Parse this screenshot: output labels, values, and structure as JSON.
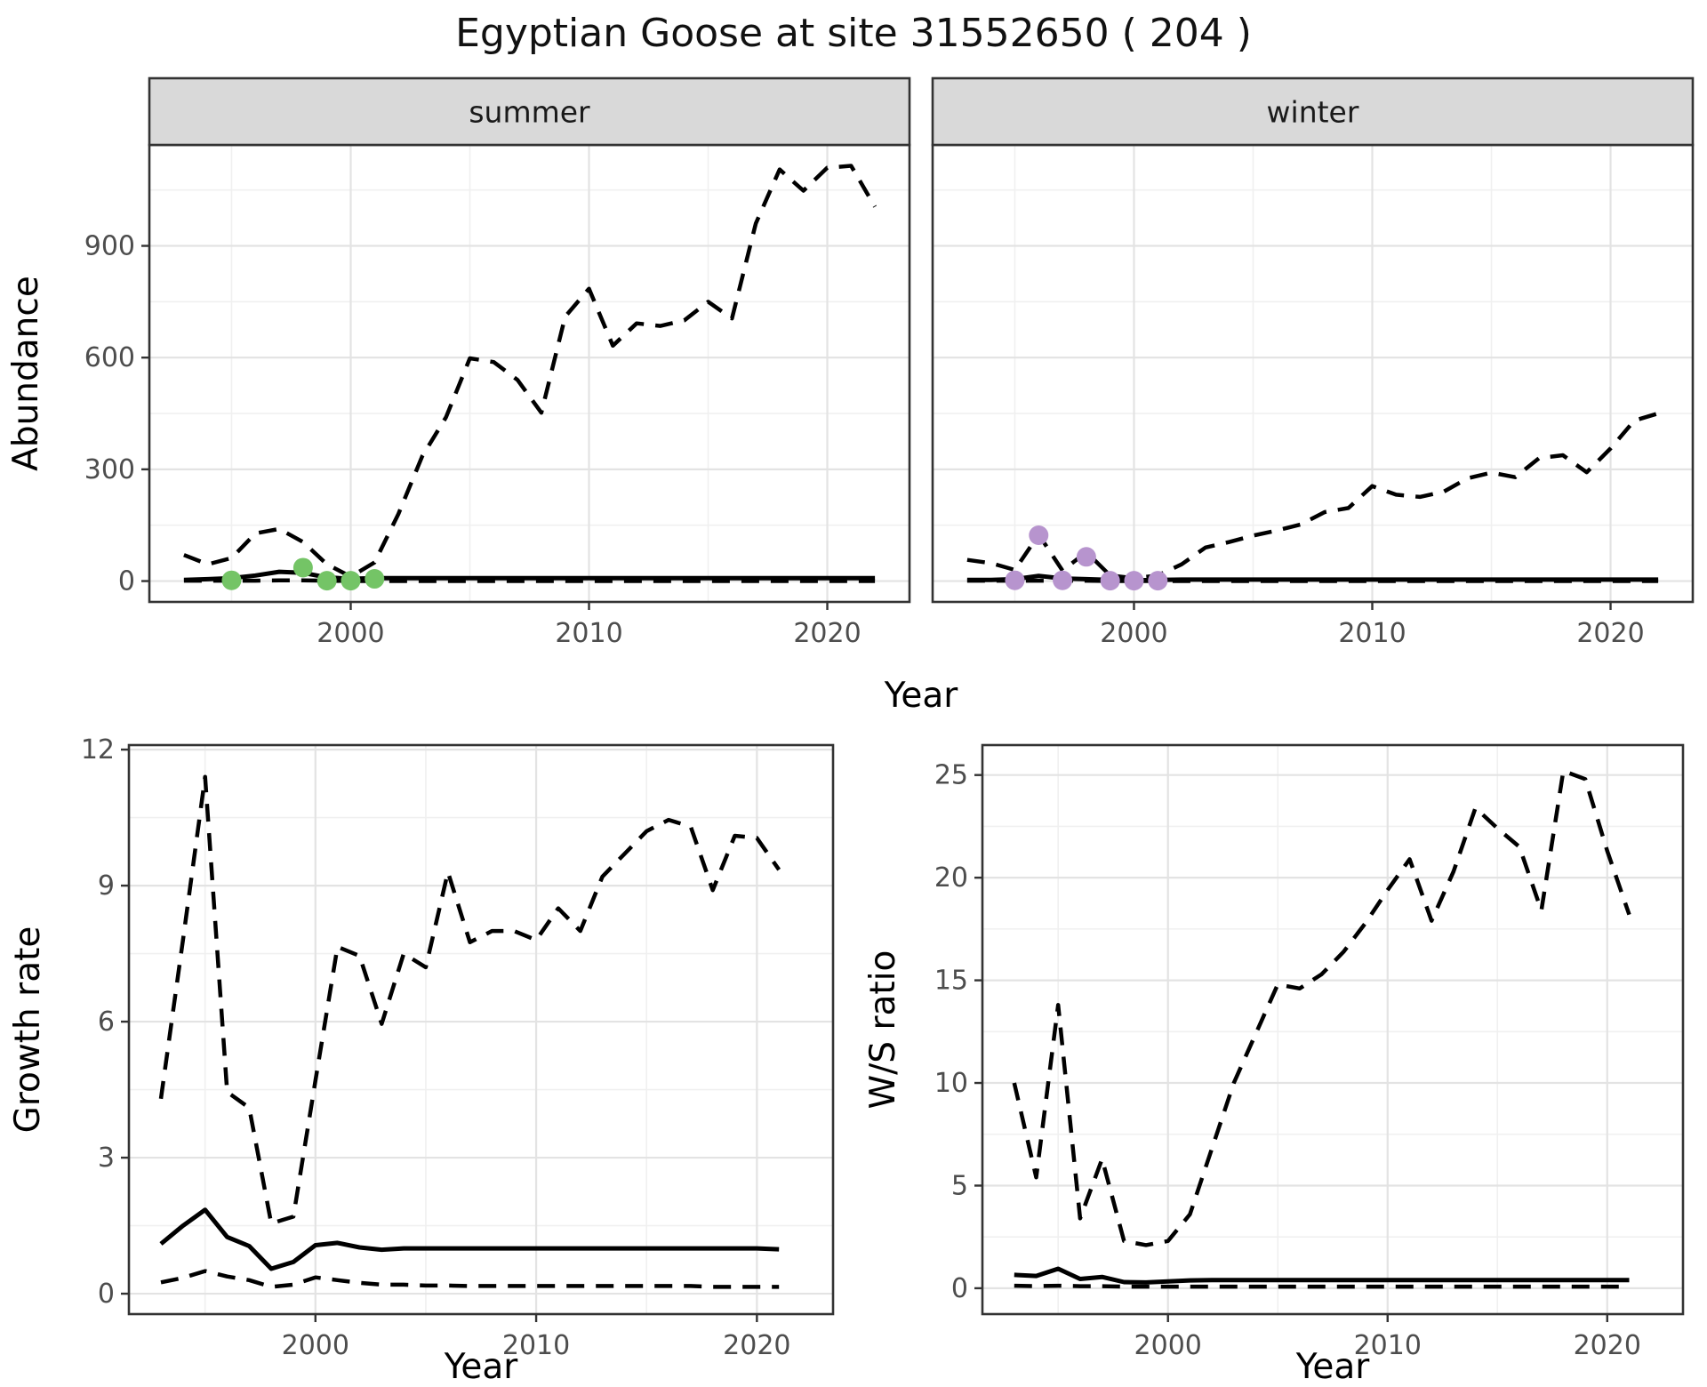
{
  "title": "Egyptian Goose at site 31552650 ( 204 )",
  "axis_labels": {
    "abundance": "Abundance",
    "year": "Year",
    "growth": "Growth rate",
    "ws": "W/S ratio"
  },
  "style": {
    "line_color": "#000000",
    "summer_dot": "#74c466",
    "winter_dot": "#b794ce",
    "strip_fill": "#d9d9d9",
    "panel_fill": "#ffffff",
    "grid_major": "#e3e3e3",
    "grid_minor": "#f0f0f0",
    "border": "#333333",
    "tick_color": "#333333"
  },
  "chart_data": [
    {
      "id": "abundance-summer",
      "type": "line",
      "facet": "summer",
      "xlabel": "Year",
      "ylabel": "Abundance",
      "xlim": [
        1991.55,
        2023.45
      ],
      "ylim": [
        -56,
        1171
      ],
      "x_ticks": [
        2000,
        2010,
        2020
      ],
      "x_minor": [
        1995,
        2005,
        2015
      ],
      "y_ticks": [
        0,
        300,
        600,
        900
      ],
      "y_minor": [
        150,
        450,
        750,
        1050
      ],
      "years": [
        1993,
        1994,
        1995,
        1996,
        1997,
        1998,
        1999,
        2000,
        2001,
        2002,
        2003,
        2004,
        2005,
        2006,
        2007,
        2008,
        2009,
        2010,
        2011,
        2012,
        2013,
        2014,
        2015,
        2016,
        2017,
        2018,
        2019,
        2020,
        2021,
        2022
      ],
      "series": [
        {
          "name": "lower_95ci",
          "style": "dashed",
          "values": [
            1,
            1,
            1,
            1,
            2,
            2,
            1,
            0,
            0,
            0,
            0,
            0,
            0,
            0,
            0,
            0,
            0,
            0,
            0,
            0,
            0,
            0,
            0,
            0,
            0,
            0,
            0,
            0,
            0,
            0
          ]
        },
        {
          "name": "fitted",
          "style": "solid",
          "values": [
            3,
            5,
            8,
            15,
            25,
            22,
            10,
            6,
            8,
            8,
            8,
            8,
            8,
            8,
            8,
            8,
            8,
            8,
            8,
            8,
            8,
            8,
            8,
            8,
            8,
            8,
            8,
            8,
            8,
            8
          ]
        },
        {
          "name": "upper_95ci",
          "style": "dashed",
          "values": [
            70,
            45,
            62,
            128,
            140,
            105,
            45,
            12,
            50,
            180,
            335,
            440,
            598,
            588,
            540,
            452,
            710,
            785,
            632,
            692,
            685,
            700,
            750,
            705,
            960,
            1105,
            1048,
            1110,
            1115,
            1005
          ]
        }
      ],
      "points": {
        "name": "observed-count",
        "color_key": "summer_dot",
        "data": [
          [
            1995,
            2
          ],
          [
            1998,
            36
          ],
          [
            1999,
            1
          ],
          [
            2000,
            1
          ],
          [
            2001,
            6
          ]
        ]
      }
    },
    {
      "id": "abundance-winter",
      "type": "line",
      "facet": "winter",
      "xlabel": "Year",
      "ylabel": "Abundance",
      "xlim": [
        1991.55,
        2023.45
      ],
      "ylim": [
        -56,
        1171
      ],
      "x_ticks": [
        2000,
        2010,
        2020
      ],
      "x_minor": [
        1995,
        2005,
        2015
      ],
      "y_ticks": [
        0,
        300,
        600,
        900
      ],
      "y_minor": [
        150,
        450,
        750,
        1050
      ],
      "years": [
        1993,
        1994,
        1995,
        1996,
        1997,
        1998,
        1999,
        2000,
        2001,
        2002,
        2003,
        2004,
        2005,
        2006,
        2007,
        2008,
        2009,
        2010,
        2011,
        2012,
        2013,
        2014,
        2015,
        2016,
        2017,
        2018,
        2019,
        2020,
        2021,
        2022
      ],
      "series": [
        {
          "name": "lower_95ci",
          "style": "dashed",
          "values": [
            1,
            1,
            1,
            1,
            1,
            1,
            0,
            0,
            0,
            0,
            0,
            0,
            0,
            0,
            0,
            0,
            0,
            0,
            0,
            0,
            0,
            0,
            0,
            0,
            0,
            0,
            0,
            0,
            0,
            0
          ]
        },
        {
          "name": "fitted",
          "style": "solid",
          "values": [
            3,
            3,
            5,
            14,
            7,
            5,
            3,
            2,
            3,
            4,
            4,
            4,
            4,
            4,
            4,
            4,
            4,
            4,
            4,
            4,
            4,
            4,
            4,
            4,
            4,
            4,
            4,
            4,
            4,
            4
          ]
        },
        {
          "name": "upper_95ci",
          "style": "dashed",
          "values": [
            57,
            48,
            30,
            125,
            28,
            78,
            15,
            8,
            15,
            45,
            90,
            105,
            122,
            136,
            152,
            185,
            196,
            255,
            232,
            226,
            240,
            276,
            291,
            279,
            330,
            338,
            292,
            356,
            431,
            450
          ]
        }
      ],
      "points": {
        "name": "observed-count",
        "color_key": "winter_dot",
        "data": [
          [
            1995,
            2
          ],
          [
            1996,
            123
          ],
          [
            1997,
            2
          ],
          [
            1998,
            65
          ],
          [
            1999,
            1
          ],
          [
            2000,
            1
          ],
          [
            2001,
            1
          ]
        ]
      }
    },
    {
      "id": "growth-rate",
      "type": "line",
      "facet": null,
      "xlabel": "Year",
      "ylabel": "Growth rate",
      "xlim": [
        1991.55,
        2023.45
      ],
      "ylim": [
        -0.45,
        12.1
      ],
      "x_ticks": [
        2000,
        2010,
        2020
      ],
      "x_minor": [
        1995,
        2005,
        2015
      ],
      "y_ticks": [
        0,
        3,
        6,
        9,
        12
      ],
      "y_minor": [
        1.5,
        4.5,
        7.5,
        10.5
      ],
      "years": [
        1993,
        1994,
        1995,
        1996,
        1997,
        1998,
        1999,
        2000,
        2001,
        2002,
        2003,
        2004,
        2005,
        2006,
        2007,
        2008,
        2009,
        2010,
        2011,
        2012,
        2013,
        2014,
        2015,
        2016,
        2017,
        2018,
        2019,
        2020,
        2021
      ],
      "series": [
        {
          "name": "lower_95ci",
          "style": "dashed",
          "values": [
            0.25,
            0.35,
            0.5,
            0.38,
            0.3,
            0.15,
            0.2,
            0.36,
            0.3,
            0.24,
            0.2,
            0.2,
            0.18,
            0.18,
            0.17,
            0.17,
            0.17,
            0.17,
            0.17,
            0.17,
            0.17,
            0.17,
            0.17,
            0.17,
            0.17,
            0.15,
            0.15,
            0.15,
            0.15
          ]
        },
        {
          "name": "fitted",
          "style": "solid",
          "values": [
            1.1,
            1.5,
            1.85,
            1.25,
            1.05,
            0.55,
            0.7,
            1.07,
            1.12,
            1.02,
            0.97,
            1.0,
            1.0,
            1.0,
            1.0,
            1.0,
            1.0,
            1.0,
            1.0,
            1.0,
            1.0,
            1.0,
            1.0,
            1.0,
            1.0,
            1.0,
            1.0,
            1.0,
            0.98
          ]
        },
        {
          "name": "upper_95ci",
          "style": "dashed",
          "values": [
            4.3,
            7.8,
            11.4,
            4.45,
            4.1,
            1.55,
            1.7,
            4.7,
            7.65,
            7.45,
            5.95,
            7.5,
            7.2,
            9.3,
            7.75,
            8.0,
            8.0,
            7.8,
            8.5,
            8.0,
            9.2,
            9.7,
            10.2,
            10.45,
            10.3,
            8.9,
            10.1,
            10.05,
            9.35
          ]
        }
      ],
      "points": null
    },
    {
      "id": "ws-ratio",
      "type": "line",
      "facet": null,
      "xlabel": "Year",
      "ylabel": "W/S ratio",
      "xlim": [
        1991.55,
        2023.45
      ],
      "ylim": [
        -1.26,
        26.46
      ],
      "x_ticks": [
        2000,
        2010,
        2020
      ],
      "x_minor": [
        1995,
        2005,
        2015
      ],
      "y_ticks": [
        0,
        5,
        10,
        15,
        20,
        25
      ],
      "y_minor": [
        2.5,
        7.5,
        12.5,
        17.5,
        22.5
      ],
      "years": [
        1993,
        1994,
        1995,
        1996,
        1997,
        1998,
        1999,
        2000,
        2001,
        2002,
        2003,
        2004,
        2005,
        2006,
        2007,
        2008,
        2009,
        2010,
        2011,
        2012,
        2013,
        2014,
        2015,
        2016,
        2017,
        2018,
        2019,
        2020,
        2021
      ],
      "series": [
        {
          "name": "lower_95ci",
          "style": "dashed",
          "values": [
            0.12,
            0.1,
            0.12,
            0.1,
            0.1,
            0.08,
            0.08,
            0.08,
            0.08,
            0.08,
            0.08,
            0.08,
            0.08,
            0.08,
            0.08,
            0.08,
            0.08,
            0.08,
            0.08,
            0.08,
            0.08,
            0.08,
            0.08,
            0.08,
            0.08,
            0.08,
            0.08,
            0.08,
            0.08
          ]
        },
        {
          "name": "fitted",
          "style": "solid",
          "values": [
            0.65,
            0.6,
            0.95,
            0.45,
            0.55,
            0.3,
            0.28,
            0.33,
            0.38,
            0.4,
            0.4,
            0.4,
            0.4,
            0.4,
            0.4,
            0.4,
            0.4,
            0.4,
            0.4,
            0.4,
            0.4,
            0.4,
            0.4,
            0.4,
            0.4,
            0.4,
            0.4,
            0.4,
            0.4
          ]
        },
        {
          "name": "upper_95ci",
          "style": "dashed",
          "values": [
            10.0,
            5.4,
            13.8,
            3.4,
            6.3,
            2.3,
            2.1,
            2.3,
            3.6,
            6.8,
            10.0,
            12.4,
            14.8,
            14.6,
            15.3,
            16.4,
            17.8,
            19.4,
            20.9,
            17.9,
            20.3,
            23.4,
            22.4,
            21.5,
            18.4,
            25.2,
            24.8,
            21.3,
            18.2
          ]
        }
      ],
      "points": null
    }
  ]
}
